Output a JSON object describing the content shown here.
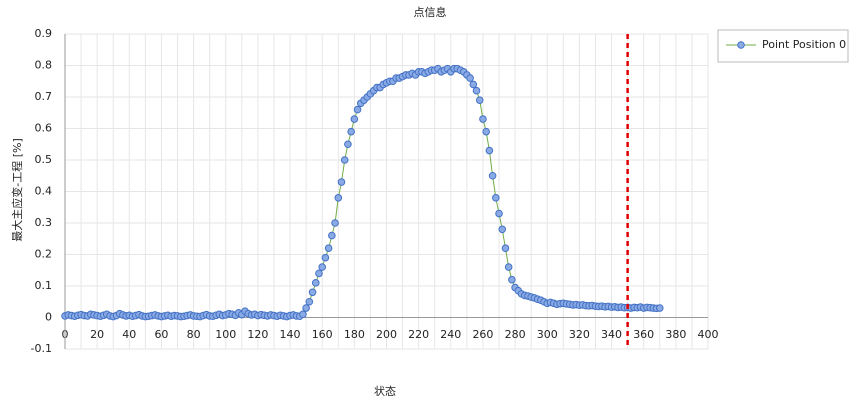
{
  "chart_data": {
    "type": "line",
    "title": "点信息",
    "x_label": "状态",
    "y_label": "最大主应变-工程 [%]",
    "x": [
      0,
      2,
      4,
      6,
      8,
      10,
      12,
      14,
      16,
      18,
      20,
      22,
      24,
      26,
      28,
      30,
      32,
      34,
      36,
      38,
      40,
      42,
      44,
      46,
      48,
      50,
      52,
      54,
      56,
      58,
      60,
      62,
      64,
      66,
      68,
      70,
      72,
      74,
      76,
      78,
      80,
      82,
      84,
      86,
      88,
      90,
      92,
      94,
      96,
      98,
      100,
      102,
      104,
      106,
      108,
      110,
      112,
      114,
      116,
      118,
      120,
      122,
      124,
      126,
      128,
      130,
      132,
      134,
      136,
      138,
      140,
      142,
      144,
      146,
      148,
      150,
      152,
      154,
      156,
      158,
      160,
      162,
      164,
      166,
      168,
      170,
      172,
      174,
      176,
      178,
      180,
      182,
      184,
      186,
      188,
      190,
      192,
      194,
      196,
      198,
      200,
      202,
      204,
      206,
      208,
      210,
      212,
      214,
      216,
      218,
      220,
      222,
      224,
      226,
      228,
      230,
      232,
      234,
      236,
      238,
      240,
      242,
      244,
      246,
      248,
      250,
      252,
      254,
      256,
      258,
      260,
      262,
      264,
      266,
      268,
      270,
      272,
      274,
      276,
      278,
      280,
      282,
      284,
      286,
      288,
      290,
      292,
      294,
      296,
      298,
      300,
      302,
      304,
      306,
      308,
      310,
      312,
      314,
      316,
      318,
      320,
      322,
      324,
      326,
      328,
      330,
      332,
      334,
      336,
      338,
      340,
      342,
      344,
      346,
      348,
      350,
      352,
      354,
      356,
      358,
      360,
      362,
      364,
      366,
      368,
      370
    ],
    "series": [
      {
        "name": "Point Position 0",
        "color": "#4472c4",
        "line_color": "#70ad47",
        "values": [
          0.005,
          0.008,
          0.006,
          0.004,
          0.007,
          0.009,
          0.006,
          0.005,
          0.01,
          0.008,
          0.006,
          0.004,
          0.007,
          0.01,
          0.005,
          0.003,
          0.006,
          0.012,
          0.008,
          0.005,
          0.007,
          0.004,
          0.006,
          0.009,
          0.005,
          0.003,
          0.004,
          0.006,
          0.008,
          0.005,
          0.003,
          0.005,
          0.007,
          0.004,
          0.006,
          0.005,
          0.003,
          0.004,
          0.006,
          0.008,
          0.005,
          0.004,
          0.003,
          0.006,
          0.009,
          0.005,
          0.004,
          0.007,
          0.01,
          0.006,
          0.008,
          0.012,
          0.01,
          0.007,
          0.015,
          0.009,
          0.02,
          0.012,
          0.008,
          0.01,
          0.006,
          0.009,
          0.007,
          0.005,
          0.008,
          0.006,
          0.004,
          0.007,
          0.005,
          0.003,
          0.006,
          0.008,
          0.005,
          0.004,
          0.01,
          0.03,
          0.05,
          0.08,
          0.11,
          0.14,
          0.16,
          0.19,
          0.22,
          0.26,
          0.3,
          0.38,
          0.43,
          0.5,
          0.55,
          0.59,
          0.63,
          0.66,
          0.68,
          0.69,
          0.7,
          0.71,
          0.72,
          0.73,
          0.73,
          0.74,
          0.745,
          0.75,
          0.75,
          0.76,
          0.76,
          0.765,
          0.77,
          0.77,
          0.775,
          0.77,
          0.78,
          0.78,
          0.775,
          0.78,
          0.785,
          0.785,
          0.79,
          0.78,
          0.785,
          0.79,
          0.78,
          0.79,
          0.79,
          0.785,
          0.78,
          0.77,
          0.76,
          0.74,
          0.72,
          0.69,
          0.63,
          0.59,
          0.53,
          0.45,
          0.38,
          0.33,
          0.28,
          0.22,
          0.16,
          0.12,
          0.095,
          0.085,
          0.075,
          0.07,
          0.068,
          0.065,
          0.062,
          0.058,
          0.055,
          0.05,
          0.045,
          0.048,
          0.045,
          0.042,
          0.044,
          0.045,
          0.043,
          0.042,
          0.04,
          0.041,
          0.039,
          0.04,
          0.038,
          0.037,
          0.038,
          0.036,
          0.035,
          0.036,
          0.034,
          0.035,
          0.033,
          0.034,
          0.032,
          0.033,
          0.031,
          0.032,
          0.03,
          0.032,
          0.031,
          0.033,
          0.03,
          0.032,
          0.031,
          0.03,
          0.029,
          0.03
        ]
      }
    ],
    "xlim": [
      0,
      400
    ],
    "xticks": [
      0,
      20,
      40,
      60,
      80,
      100,
      120,
      140,
      160,
      180,
      200,
      220,
      240,
      260,
      280,
      300,
      320,
      340,
      360,
      380,
      400
    ],
    "x_minor_ticks": [
      10,
      30,
      50,
      70,
      90,
      110,
      130,
      150,
      170,
      190,
      210,
      230,
      250,
      270,
      290,
      310,
      330,
      350,
      370,
      390
    ],
    "ylim": [
      -0.1,
      0.9
    ],
    "yticks": [
      -0.1,
      0,
      0.1,
      0.2,
      0.3,
      0.4,
      0.5,
      0.6,
      0.7,
      0.8,
      0.9
    ],
    "grid": true,
    "legend": "upper right",
    "vline": {
      "x": 350,
      "color": "#e00000"
    }
  }
}
